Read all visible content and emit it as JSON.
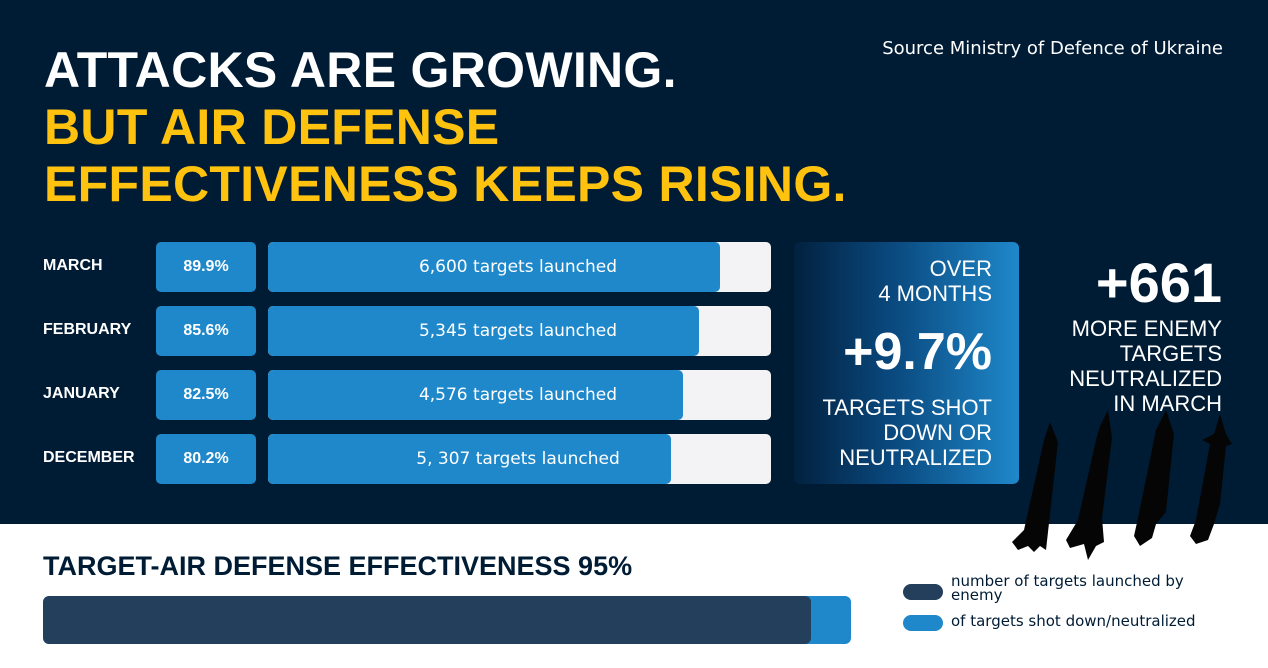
{
  "headline": {
    "line1": "ATTACKS ARE GROWING.",
    "line2": "BUT AIR DEFENSE",
    "line3": "EFFECTIVENESS KEEPS RISING."
  },
  "source": "Source Ministry of Defence of Ukraine",
  "colors": {
    "background_dark": "#001c35",
    "accent_yellow": "#ffc20e",
    "bar_blue": "#1f88cb",
    "bar_track": "#f3f3f5",
    "bar_navy": "#233f5b"
  },
  "stat_box": {
    "period_line1": "OVER",
    "period_line2": "4 MONTHS",
    "value": "+9.7%",
    "desc_line1": "TARGETS SHOT",
    "desc_line2": "DOWN OR",
    "desc_line3": "NEUTRALIZED"
  },
  "right_stat": {
    "value": "+661",
    "desc_line1": "MORE ENEMY",
    "desc_line2": "TARGETS",
    "desc_line3": "NEUTRALIZED",
    "desc_line4": "IN MARCH"
  },
  "bottom": {
    "title": "TARGET-AIR DEFENSE EFFECTIVENESS 95%",
    "effectiveness_percent": 95
  },
  "legend": [
    {
      "label": "number of targets launched by enemy",
      "color": "#233f5b"
    },
    {
      "label": "of targets shot down/neutralized",
      "color": "#1f88cb"
    }
  ],
  "chart_data": {
    "type": "bar",
    "title": "ATTACKS ARE GROWING. BUT AIR DEFENSE EFFECTIVENESS KEEPS RISING.",
    "categories": [
      "MARCH",
      "FEBRUARY",
      "JANUARY",
      "DECEMBER"
    ],
    "series": [
      {
        "name": "Air defense effectiveness (%)",
        "values": [
          89.9,
          85.6,
          82.5,
          80.2
        ],
        "labels": [
          "89.9%",
          "85.6%",
          "82.5%",
          "80.2%"
        ]
      },
      {
        "name": "Targets launched",
        "values": [
          6600,
          5345,
          4576,
          5307
        ],
        "labels": [
          "6,600 targets launched",
          "5,345 targets launched",
          "4,576 targets launched",
          "5, 307 targets launched"
        ]
      }
    ],
    "xlabel": "",
    "ylabel": "",
    "ylim": [
      0,
      100
    ],
    "grid": false
  }
}
